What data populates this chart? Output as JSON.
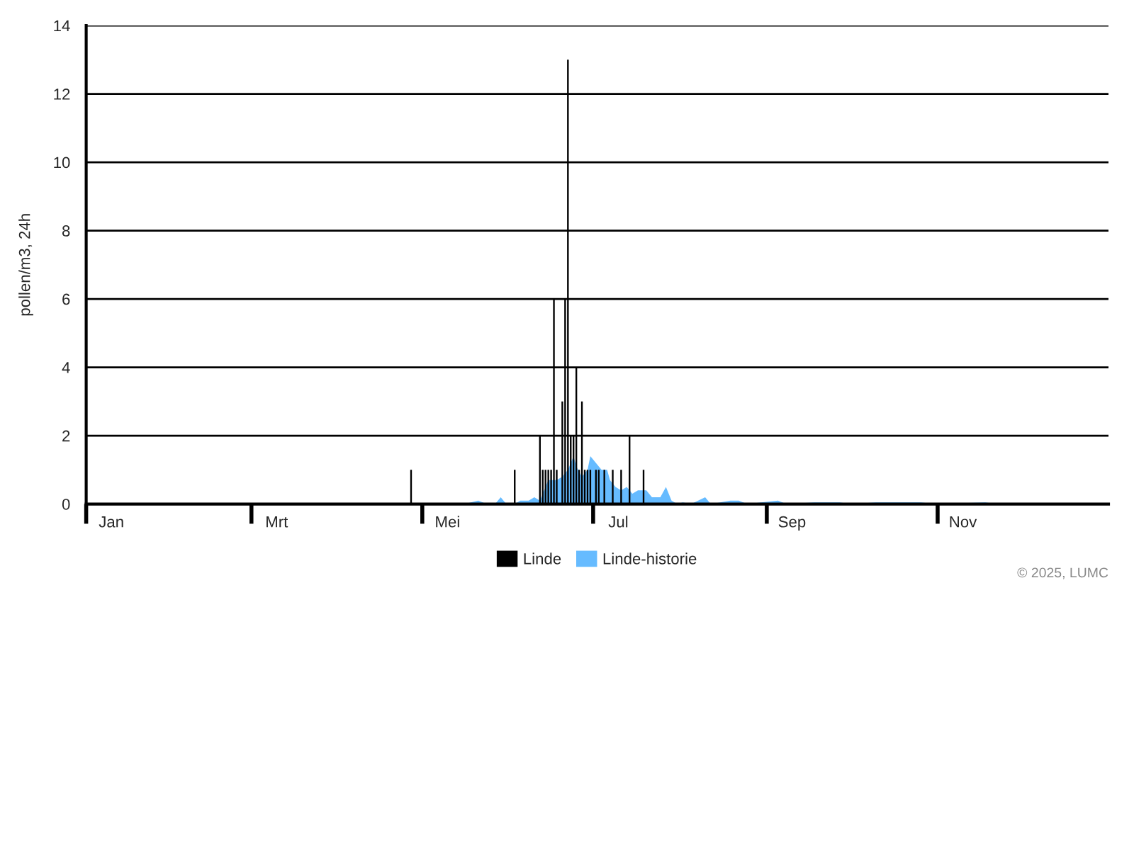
{
  "chart_data": {
    "type": "bar",
    "ylabel": "pollen/m3, 24h",
    "xlim": [
      "2025-01-01",
      "2026-01-01"
    ],
    "xticks": [
      {
        "value": "2025-01-01",
        "label": null
      },
      {
        "value": "2025-01-10",
        "label": "Jan"
      },
      {
        "value": "2025-03-01",
        "label": null
      },
      {
        "value": "2025-03-10",
        "label": "Mrt"
      },
      {
        "value": "2025-05-01",
        "label": null
      },
      {
        "value": "2025-05-10",
        "label": "Mei"
      },
      {
        "value": "2025-07-01",
        "label": null
      },
      {
        "value": "2025-07-10",
        "label": "Jul"
      },
      {
        "value": "2025-09-01",
        "label": null
      },
      {
        "value": "2025-09-10",
        "label": "Sep"
      },
      {
        "value": "2025-11-01",
        "label": null
      },
      {
        "value": "2025-11-10",
        "label": "Nov"
      }
    ],
    "ylim": [
      0,
      14
    ],
    "yticks": [
      0,
      2,
      4,
      6,
      8,
      10,
      12,
      14
    ],
    "grid": "y",
    "legend": "bottom",
    "annotations": [
      "© 2025, LUMC"
    ],
    "series": [
      {
        "name": "Linde",
        "color": "#000000",
        "x": [
          "2025-04-27",
          "2025-06-03",
          "2025-06-12",
          "2025-06-13",
          "2025-06-14",
          "2025-06-15",
          "2025-06-16",
          "2025-06-17",
          "2025-06-18",
          "2025-06-20",
          "2025-06-21",
          "2025-06-22",
          "2025-06-23",
          "2025-06-24",
          "2025-06-25",
          "2025-06-26",
          "2025-06-27",
          "2025-06-28",
          "2025-06-29",
          "2025-06-30",
          "2025-07-02",
          "2025-07-03",
          "2025-07-05",
          "2025-07-08",
          "2025-07-11",
          "2025-07-14",
          "2025-07-19"
        ],
        "values": [
          1,
          1,
          2,
          1,
          1,
          1,
          1,
          6,
          1,
          3,
          6,
          13,
          2,
          2,
          4,
          1,
          3,
          1,
          1,
          1,
          1,
          1,
          1,
          1,
          1,
          2,
          1
        ]
      },
      {
        "name": "Linde-historie",
        "type": "area",
        "color": "#66bbff",
        "x": [
          "2025-05-16",
          "2025-05-21",
          "2025-05-24",
          "2025-05-27",
          "2025-05-29",
          "2025-05-31",
          "2025-06-03",
          "2025-06-05",
          "2025-06-08",
          "2025-06-10",
          "2025-06-12",
          "2025-06-14",
          "2025-06-15",
          "2025-06-18",
          "2025-06-20",
          "2025-06-22",
          "2025-06-24",
          "2025-06-25",
          "2025-06-27",
          "2025-06-29",
          "2025-06-30",
          "2025-07-01",
          "2025-07-04",
          "2025-07-06",
          "2025-07-07",
          "2025-07-09",
          "2025-07-11",
          "2025-07-13",
          "2025-07-15",
          "2025-07-17",
          "2025-07-20",
          "2025-07-22",
          "2025-07-25",
          "2025-07-27",
          "2025-07-29",
          "2025-07-31",
          "2025-08-02",
          "2025-08-05",
          "2025-08-10",
          "2025-08-12",
          "2025-08-19",
          "2025-08-22",
          "2025-08-25",
          "2025-08-30",
          "2025-09-05",
          "2025-09-08",
          "2025-09-18",
          "2025-09-27",
          "2025-10-01",
          "2025-10-10",
          "2025-10-18",
          "2025-10-26",
          "2025-10-31",
          "2025-11-18",
          "2025-11-22"
        ],
        "values": [
          0,
          0.1,
          0,
          0,
          0.2,
          0,
          0,
          0.1,
          0.1,
          0.2,
          0.1,
          0.5,
          0.7,
          0.7,
          0.8,
          1.0,
          1.4,
          1.1,
          0.8,
          1.0,
          1.4,
          1.3,
          1.0,
          1.0,
          0.7,
          0.5,
          0.4,
          0.5,
          0.3,
          0.4,
          0.4,
          0.2,
          0.2,
          0.5,
          0.1,
          0,
          0.05,
          0,
          0.2,
          0,
          0.1,
          0.1,
          0,
          0.05,
          0.1,
          0,
          0.05,
          0.05,
          0,
          0.05,
          0.05,
          0.05,
          0,
          0.05,
          0
        ]
      }
    ]
  }
}
